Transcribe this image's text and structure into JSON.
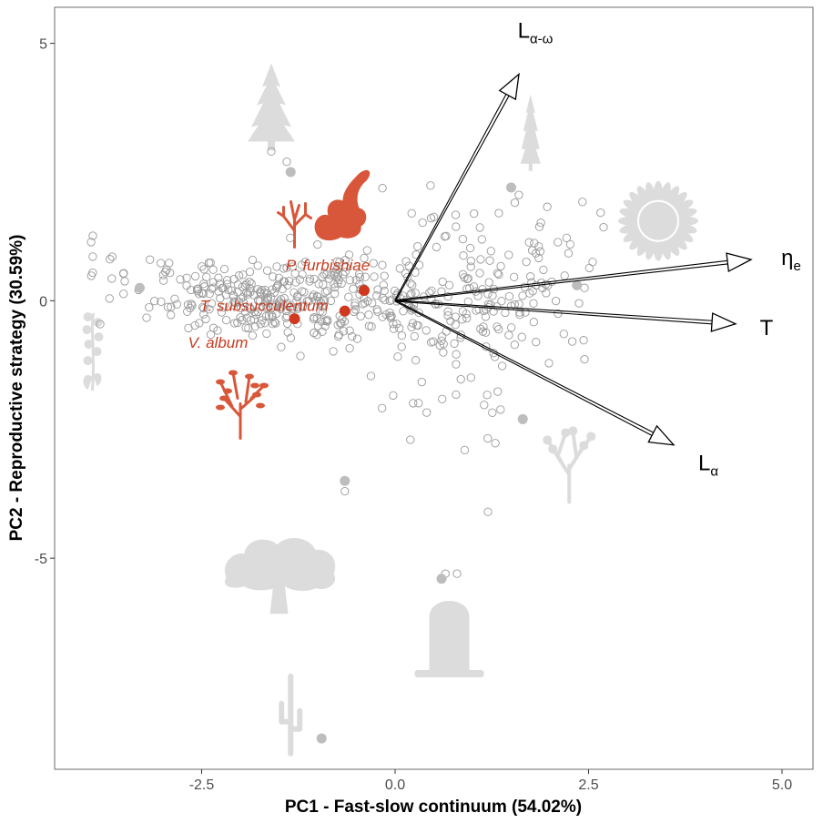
{
  "chart_data": {
    "type": "scatter",
    "title": "",
    "xlabel": "PC1 - Fast-slow continuum (54.02%)",
    "ylabel": "PC2 - Reproductive strategy (30.59%)",
    "xlim": [
      -4.4,
      5.4
    ],
    "ylim": [
      -9.1,
      5.7
    ],
    "xticks": [
      -2.5,
      0,
      2.5,
      5
    ],
    "xtick_labels": [
      "-2.5",
      "0.0",
      "2.5",
      "5.0"
    ],
    "yticks": [
      -5,
      0,
      5
    ],
    "ytick_labels": [
      "-5",
      "0",
      "5"
    ],
    "grid": false,
    "highlighted_species": [
      {
        "name": "P. furbishiae",
        "x": -0.4,
        "y": 0.2
      },
      {
        "name": "T. subsucculentum",
        "x": -0.65,
        "y": -0.2
      },
      {
        "name": "V. album",
        "x": -1.3,
        "y": -0.35
      }
    ],
    "filled_points": [
      {
        "x": -1.35,
        "y": 2.5
      },
      {
        "x": 1.5,
        "y": 2.2
      },
      {
        "x": -3.3,
        "y": 0.25
      },
      {
        "x": 2.35,
        "y": 0.3
      },
      {
        "x": 1.65,
        "y": -2.3
      },
      {
        "x": -0.65,
        "y": -3.5
      },
      {
        "x": 0.6,
        "y": -5.4
      },
      {
        "x": -0.95,
        "y": -8.5
      }
    ],
    "vectors": [
      {
        "name": "L",
        "subscript": "α-ω",
        "x": 1.6,
        "y": 4.4
      },
      {
        "name": "η",
        "subscript": "e",
        "x": 4.6,
        "y": 0.8
      },
      {
        "name": "T",
        "subscript": "",
        "x": 4.4,
        "y": -0.45
      },
      {
        "name": "L",
        "subscript": "α",
        "x": 3.6,
        "y": -2.8
      }
    ],
    "colors": {
      "highlight": "#d0391e",
      "silhouette_highlight": "#d8573a",
      "silhouette_background": "#dcdcdc",
      "open_point": "#9a9a9a",
      "filled_point": "#bdbdbd",
      "vector": "#000000"
    },
    "silhouettes": [
      "conifer-tree",
      "tall-conifer",
      "coral-shrub",
      "cushion-plant",
      "sunflower",
      "flowering-herb",
      "succulent-shrub",
      "bushy-shrub",
      "broad-oak-tree",
      "barrel-cactus",
      "saguaro-cactus"
    ]
  }
}
